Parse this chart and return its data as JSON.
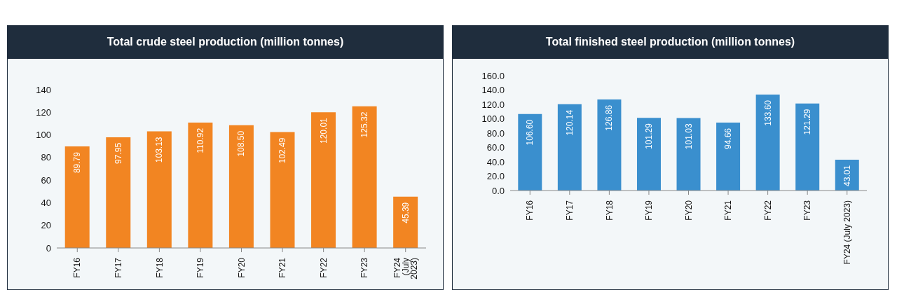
{
  "chart_data": [
    {
      "type": "bar",
      "title": "Total crude steel production (million tonnes)",
      "categories": [
        "FY16",
        "FY17",
        "FY18",
        "FY19",
        "FY20",
        "FY21",
        "FY22",
        "FY23",
        "FY24 (July 2023)"
      ],
      "values": [
        89.79,
        97.95,
        103.13,
        110.92,
        108.5,
        102.49,
        120.01,
        125.32,
        45.39
      ],
      "value_labels": [
        "89.79",
        "97.95",
        "103.13",
        "110.92",
        "108.50",
        "102.49",
        "120.01",
        "125.32",
        "45.39"
      ],
      "color": "#f28522",
      "ylim": [
        0,
        140
      ],
      "yticks": [
        0,
        20,
        40,
        60,
        80,
        100,
        120,
        140
      ],
      "grid": false,
      "legend": false
    },
    {
      "type": "bar",
      "title": "Total finished steel production (million tonnes)",
      "categories": [
        "FY16",
        "FY17",
        "FY18",
        "FY19",
        "FY20",
        "FY21",
        "FY22",
        "FY23",
        "FY24 (July 2023)"
      ],
      "values": [
        106.6,
        120.14,
        126.86,
        101.29,
        101.03,
        94.66,
        133.6,
        121.29,
        43.01
      ],
      "value_labels": [
        "106.60",
        "120.14",
        "126.86",
        "101.29",
        "101.03",
        "94.66",
        "133.60",
        "121.29",
        "43.01"
      ],
      "color": "#3a8fce",
      "ylim": [
        0,
        160
      ],
      "yticks": [
        {
          "value": 0,
          "label": "0.0"
        },
        {
          "value": 20,
          "label": "20.0"
        },
        {
          "value": 40,
          "label": "40.0"
        },
        {
          "value": 60,
          "label": "60.0"
        },
        {
          "value": 80,
          "label": "80.0"
        },
        {
          "value": 100,
          "label": "100.0"
        },
        {
          "value": 120,
          "label": "120.0"
        },
        {
          "value": 140,
          "label": "140.0"
        },
        {
          "value": 160,
          "label": "160.0"
        }
      ],
      "grid": false,
      "legend": false
    }
  ]
}
